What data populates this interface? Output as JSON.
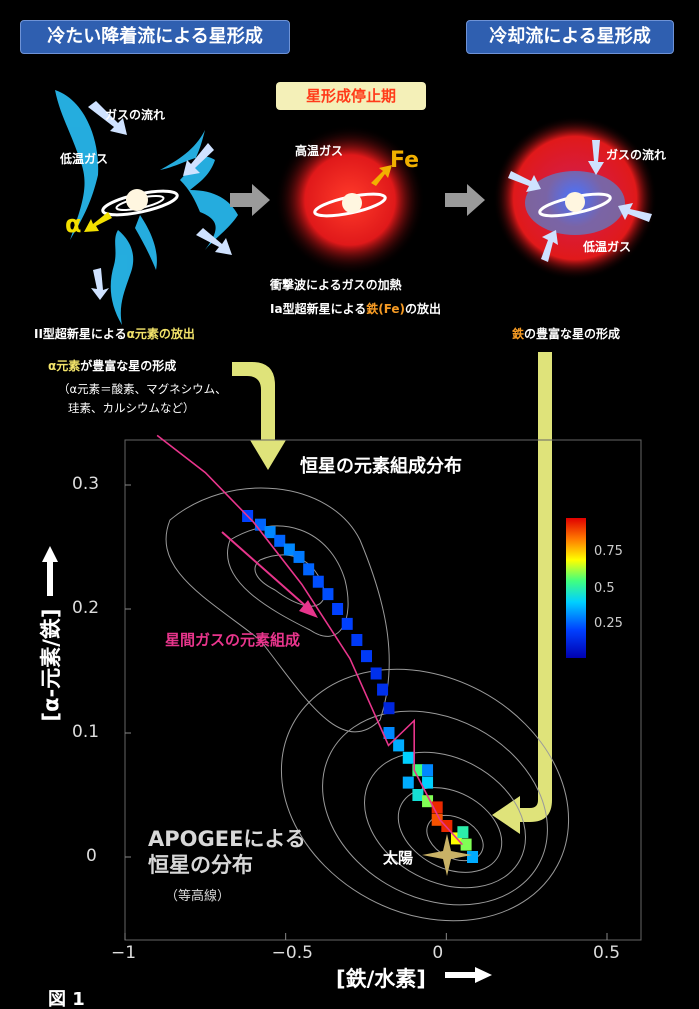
{
  "headers": {
    "cold_accretion": "冷たい降着流による星形成",
    "cooling_flow": "冷却流による星形成",
    "quenching": "星形成停止期"
  },
  "left_panel": {
    "gas_flow": "ガスの流れ",
    "cold_gas": "低温ガス",
    "alpha": "α",
    "sn2_release_pre": "II型超新星による",
    "sn2_release_hl": "α元素の放出",
    "alpha_star_hl": "α元素",
    "alpha_star_post": "が豊富な星の形成",
    "alpha_note_1": "（α元素＝酸素、マグネシウム、",
    "alpha_note_2": "珪素、カルシウムなど）"
  },
  "middle_panel": {
    "hot_gas": "高温ガス",
    "fe": "Fe",
    "shock_heating": "衝撃波によるガスの加熱",
    "sn1a_pre": "Ia型超新星による",
    "sn1a_hl": "鉄(Fe)",
    "sn1a_post": "の放出"
  },
  "right_panel": {
    "gas_flow": "ガスの流れ",
    "cold_gas": "低温ガス",
    "iron_hl": "鉄",
    "iron_post": "の豊富な星の形成"
  },
  "plot": {
    "title": "恒星の元素組成分布",
    "gas_composition": "星間ガスの元素組成",
    "apogee_line1": "APOGEEによる",
    "apogee_line2": "恒星の分布",
    "apogee_sub": "（等高線）",
    "sun": "太陽",
    "xlabel": "[鉄/水素]",
    "ylabel": "[α-元素/鉄]",
    "colorbar_ticks": [
      "0.75",
      "0.5",
      "0.25"
    ]
  },
  "figure_label": "図 1",
  "chart_data": {
    "type": "heatmap",
    "title": "恒星の元素組成分布",
    "xlabel": "[鉄/水素]",
    "ylabel": "[α-元素/鉄]",
    "xlim": [
      -1,
      0.6
    ],
    "ylim": [
      -0.06,
      0.36
    ],
    "x_ticks": [
      "−1",
      "−0.5",
      "0",
      "0.5"
    ],
    "y_ticks": [
      "0",
      "0.1",
      "0.2",
      "0.3"
    ],
    "colorbar_ticks": [
      "0.25",
      "0.5",
      "0.75"
    ],
    "sun": [
      0.0,
      0.0
    ],
    "gas_track": [
      [
        -0.9,
        0.34
      ],
      [
        -0.75,
        0.31
      ],
      [
        -0.6,
        0.27
      ],
      [
        -0.45,
        0.22
      ],
      [
        -0.3,
        0.16
      ],
      [
        -0.18,
        0.09
      ],
      [
        -0.1,
        0.11
      ],
      [
        -0.1,
        0.07
      ],
      [
        -0.02,
        0.03
      ],
      [
        0.05,
        0.01
      ]
    ],
    "cells": [
      {
        "x": -0.62,
        "y": 0.275,
        "v": 0.2
      },
      {
        "x": -0.58,
        "y": 0.268,
        "v": 0.25
      },
      {
        "x": -0.55,
        "y": 0.262,
        "v": 0.3
      },
      {
        "x": -0.52,
        "y": 0.255,
        "v": 0.25
      },
      {
        "x": -0.49,
        "y": 0.248,
        "v": 0.3
      },
      {
        "x": -0.46,
        "y": 0.242,
        "v": 0.28
      },
      {
        "x": -0.43,
        "y": 0.232,
        "v": 0.25
      },
      {
        "x": -0.4,
        "y": 0.222,
        "v": 0.22
      },
      {
        "x": -0.37,
        "y": 0.212,
        "v": 0.22
      },
      {
        "x": -0.34,
        "y": 0.2,
        "v": 0.2
      },
      {
        "x": -0.31,
        "y": 0.188,
        "v": 0.2
      },
      {
        "x": -0.28,
        "y": 0.175,
        "v": 0.18
      },
      {
        "x": -0.25,
        "y": 0.162,
        "v": 0.18
      },
      {
        "x": -0.22,
        "y": 0.148,
        "v": 0.15
      },
      {
        "x": -0.2,
        "y": 0.135,
        "v": 0.15
      },
      {
        "x": -0.18,
        "y": 0.12,
        "v": 0.12
      },
      {
        "x": -0.18,
        "y": 0.1,
        "v": 0.3
      },
      {
        "x": -0.15,
        "y": 0.09,
        "v": 0.35
      },
      {
        "x": -0.12,
        "y": 0.08,
        "v": 0.4
      },
      {
        "x": -0.09,
        "y": 0.07,
        "v": 0.55
      },
      {
        "x": -0.06,
        "y": 0.06,
        "v": 0.4
      },
      {
        "x": -0.12,
        "y": 0.06,
        "v": 0.35
      },
      {
        "x": -0.09,
        "y": 0.05,
        "v": 0.45
      },
      {
        "x": -0.06,
        "y": 0.045,
        "v": 0.6
      },
      {
        "x": -0.03,
        "y": 0.04,
        "v": 0.95
      },
      {
        "x": -0.03,
        "y": 0.03,
        "v": 0.9
      },
      {
        "x": 0.0,
        "y": 0.025,
        "v": 0.95
      },
      {
        "x": 0.03,
        "y": 0.015,
        "v": 0.7
      },
      {
        "x": 0.06,
        "y": 0.01,
        "v": 0.6
      },
      {
        "x": 0.08,
        "y": 0.0,
        "v": 0.35
      },
      {
        "x": -0.06,
        "y": 0.07,
        "v": 0.3
      },
      {
        "x": 0.05,
        "y": 0.02,
        "v": 0.5
      }
    ]
  },
  "colors": {
    "header_bg": "#2f5fb0",
    "highlight_yellow": "#f2e36a",
    "highlight_orange": "#f59a24",
    "gas_track": "#e8358c",
    "arrow": "#dfe37a"
  }
}
